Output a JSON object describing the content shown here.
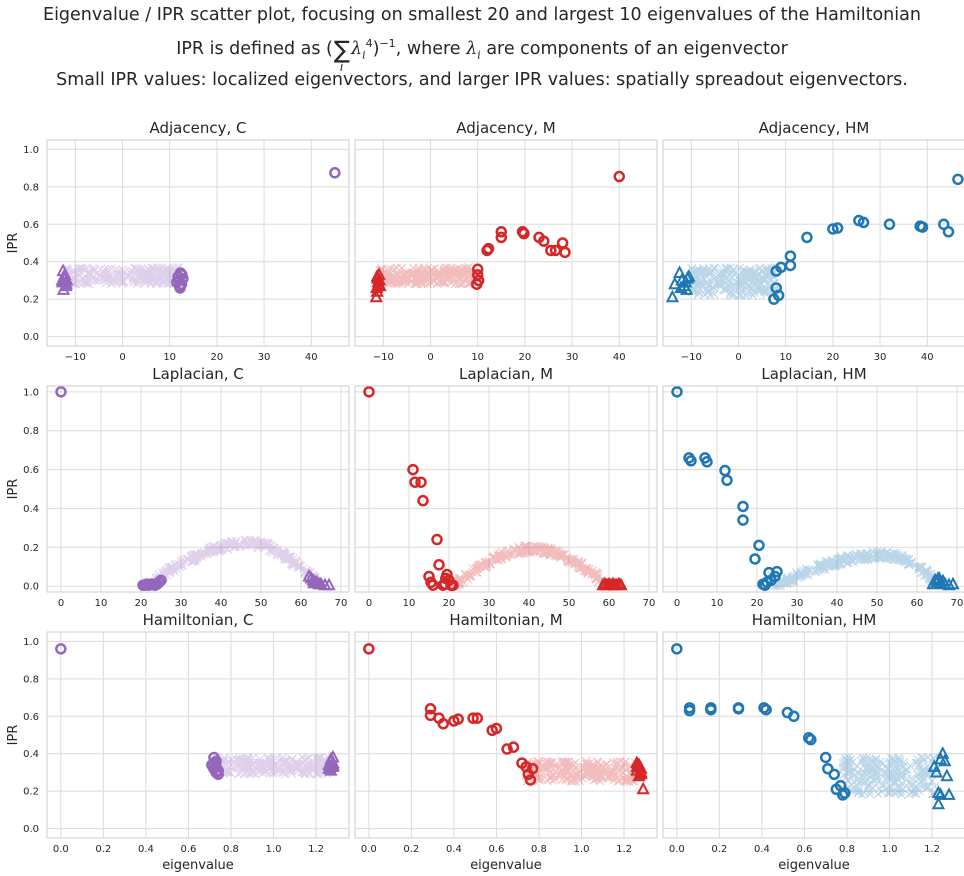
{
  "titles": {
    "line1": "Eigenvalue / IPR scatter plot, focusing on smallest 20 and largest 10 eigenvalues of the Hamiltonian",
    "line2_prefix": "IPR is defined as (",
    "line2_lambda": "λ",
    "line2_sub": "i",
    "line2_pow": "4",
    "line2_neg": "−1",
    "line2_mid": ", where ",
    "line2_suffix": " are components of an eigenvector",
    "line3": "Small IPR values: localized eigenvectors, and larger IPR values: spatially spreadout eigenvectors."
  },
  "colors": {
    "C": "#9467bd",
    "M": "#d62728",
    "HM": "#1f77b4",
    "grid": "#dcdcdc",
    "text": "#262626"
  },
  "legend_markers": {
    "middle": "x-marker",
    "smallest": "circle-marker",
    "largest": "triangle-marker"
  },
  "chart_data": [
    {
      "type": "scatter",
      "title": "Adjacency, C",
      "ylabel": "IPR",
      "xlim": [
        -16,
        48
      ],
      "ylim": [
        -0.05,
        1.05
      ],
      "xticks": [
        -10,
        0,
        10,
        20,
        30,
        40
      ],
      "yticks": [
        0.0,
        0.2,
        0.4,
        0.6,
        0.8,
        1.0
      ],
      "color": "C",
      "middle_band": {
        "x": [
          -12,
          12
        ],
        "y": [
          0.28,
          0.37
        ]
      },
      "smallest": [
        [
          45,
          0.875
        ],
        [
          12.3,
          0.34
        ],
        [
          12.0,
          0.3
        ],
        [
          12.5,
          0.28
        ],
        [
          11.8,
          0.32
        ],
        [
          12.2,
          0.26
        ],
        [
          12.6,
          0.33
        ],
        [
          11.5,
          0.29
        ],
        [
          12.8,
          0.31
        ],
        [
          12.1,
          0.27
        ]
      ],
      "largest": [
        [
          -12.5,
          0.25
        ],
        [
          -12.2,
          0.33
        ],
        [
          -12.8,
          0.3
        ],
        [
          -11.9,
          0.28
        ],
        [
          -12.6,
          0.35
        ],
        [
          -12.3,
          0.31
        ],
        [
          -12.0,
          0.27
        ],
        [
          -12.7,
          0.29
        ],
        [
          -12.4,
          0.32
        ],
        [
          -11.8,
          0.3
        ]
      ]
    },
    {
      "type": "scatter",
      "title": "Adjacency, M",
      "xlim": [
        -16,
        48
      ],
      "ylim": [
        -0.05,
        1.05
      ],
      "xticks": [
        -10,
        0,
        10,
        20,
        30,
        40
      ],
      "yticks": [
        0.0,
        0.2,
        0.4,
        0.6,
        0.8,
        1.0
      ],
      "color": "M",
      "middle_band": {
        "x": [
          -11,
          9.5
        ],
        "y": [
          0.28,
          0.37
        ]
      },
      "smallest": [
        [
          40,
          0.855
        ],
        [
          15,
          0.56
        ],
        [
          15,
          0.53
        ],
        [
          19.5,
          0.56
        ],
        [
          19.8,
          0.55
        ],
        [
          23,
          0.53
        ],
        [
          24,
          0.51
        ],
        [
          25.5,
          0.46
        ],
        [
          26.5,
          0.46
        ],
        [
          28,
          0.5
        ],
        [
          28.5,
          0.45
        ],
        [
          12,
          0.46
        ],
        [
          12.3,
          0.47
        ],
        [
          10,
          0.36
        ],
        [
          10,
          0.33
        ],
        [
          9.8,
          0.28
        ],
        [
          10.2,
          0.3
        ]
      ],
      "largest": [
        [
          -11.5,
          0.21
        ],
        [
          -11.3,
          0.24
        ],
        [
          -11.0,
          0.28
        ],
        [
          -11.2,
          0.31
        ],
        [
          -10.8,
          0.3
        ],
        [
          -11.4,
          0.26
        ],
        [
          -10.9,
          0.33
        ],
        [
          -11.1,
          0.29
        ],
        [
          -10.7,
          0.27
        ],
        [
          -11.3,
          0.32
        ]
      ]
    },
    {
      "type": "scatter",
      "title": "Adjacency, HM",
      "xlim": [
        -16,
        48
      ],
      "ylim": [
        -0.05,
        1.05
      ],
      "xticks": [
        -10,
        0,
        10,
        20,
        30,
        40
      ],
      "yticks": [
        0.0,
        0.2,
        0.4,
        0.6,
        0.8,
        1.0
      ],
      "color": "HM",
      "middle_band": {
        "x": [
          -10,
          8
        ],
        "y": [
          0.22,
          0.37
        ]
      },
      "smallest": [
        [
          46.5,
          0.84
        ],
        [
          25.5,
          0.62
        ],
        [
          26.5,
          0.61
        ],
        [
          32,
          0.6
        ],
        [
          38.5,
          0.59
        ],
        [
          39,
          0.585
        ],
        [
          43.5,
          0.6
        ],
        [
          44.5,
          0.56
        ],
        [
          20,
          0.575
        ],
        [
          21,
          0.58
        ],
        [
          14.5,
          0.53
        ],
        [
          11,
          0.43
        ],
        [
          11,
          0.38
        ],
        [
          9,
          0.37
        ],
        [
          8,
          0.35
        ],
        [
          8,
          0.26
        ],
        [
          8.5,
          0.22
        ],
        [
          7.5,
          0.2
        ]
      ],
      "largest": [
        [
          -14,
          0.21
        ],
        [
          -13.5,
          0.28
        ],
        [
          -12.5,
          0.34
        ],
        [
          -12,
          0.3
        ],
        [
          -11.5,
          0.27
        ],
        [
          -11,
          0.25
        ],
        [
          -10.8,
          0.31
        ],
        [
          -12.2,
          0.26
        ],
        [
          -11.2,
          0.29
        ],
        [
          -10.5,
          0.32
        ]
      ]
    },
    {
      "type": "scatter",
      "title": "Laplacian, C",
      "ylabel": "IPR",
      "xlim": [
        -3.5,
        72
      ],
      "ylim": [
        -0.03,
        1.03
      ],
      "xticks": [
        0,
        10,
        20,
        30,
        40,
        50,
        60,
        70
      ],
      "yticks": [
        0.0,
        0.2,
        0.4,
        0.6,
        0.8,
        1.0
      ],
      "color": "C",
      "middle_curve": {
        "x_start": 21,
        "x_peak": 47,
        "x_end": 64,
        "y_start": 0.0,
        "y_peak": 0.22,
        "y_end": 0.02
      },
      "smallest": [
        [
          0,
          1.0
        ],
        [
          20.5,
          0.005
        ],
        [
          21,
          0.005
        ],
        [
          21.5,
          0.01
        ],
        [
          22,
          0.005
        ],
        [
          22.5,
          0.01
        ],
        [
          23,
          0.01
        ],
        [
          23.5,
          0.005
        ],
        [
          24,
          0.01
        ],
        [
          24.5,
          0.02
        ],
        [
          25,
          0.03
        ]
      ],
      "largest": [
        [
          62,
          0.05
        ],
        [
          62.5,
          0.04
        ],
        [
          63,
          0.03
        ],
        [
          63.5,
          0.02
        ],
        [
          64,
          0.02
        ],
        [
          64.5,
          0.01
        ],
        [
          65,
          0.01
        ],
        [
          66,
          0.005
        ],
        [
          67,
          0.005
        ],
        [
          63.2,
          0.015
        ]
      ]
    },
    {
      "type": "scatter",
      "title": "Laplacian, M",
      "xlim": [
        -3.5,
        72
      ],
      "ylim": [
        -0.03,
        1.03
      ],
      "xticks": [
        0,
        10,
        20,
        30,
        40,
        50,
        60,
        70
      ],
      "yticks": [
        0.0,
        0.2,
        0.4,
        0.6,
        0.8,
        1.0
      ],
      "color": "M",
      "middle_curve": {
        "x_start": 21,
        "x_peak": 41,
        "x_end": 60,
        "y_start": 0.0,
        "y_peak": 0.19,
        "y_end": 0.0
      },
      "smallest": [
        [
          0,
          1.0
        ],
        [
          11,
          0.6
        ],
        [
          11.5,
          0.535
        ],
        [
          13,
          0.535
        ],
        [
          13.5,
          0.44
        ],
        [
          15,
          0.05
        ],
        [
          15.5,
          0.02
        ],
        [
          16,
          0.005
        ],
        [
          17,
          0.24
        ],
        [
          17.5,
          0.11
        ],
        [
          18.5,
          0.005
        ],
        [
          19,
          0.01
        ],
        [
          19.5,
          0.06
        ],
        [
          20,
          0.03
        ],
        [
          20.5,
          0.005
        ],
        [
          21,
          0.005
        ],
        [
          19.2,
          0.04
        ]
      ],
      "largest": [
        [
          58.5,
          0.005
        ],
        [
          59,
          0.01
        ],
        [
          59.5,
          0.005
        ],
        [
          60,
          0.01
        ],
        [
          60.5,
          0.005
        ],
        [
          61,
          0.01
        ],
        [
          61.5,
          0.005
        ],
        [
          62,
          0.005
        ],
        [
          62.5,
          0.01
        ],
        [
          63,
          0.005
        ]
      ]
    },
    {
      "type": "scatter",
      "title": "Laplacian, HM",
      "xlim": [
        -3.5,
        72
      ],
      "ylim": [
        -0.03,
        1.03
      ],
      "xticks": [
        0,
        10,
        20,
        30,
        40,
        50,
        60,
        70
      ],
      "yticks": [
        0.0,
        0.2,
        0.4,
        0.6,
        0.8,
        1.0
      ],
      "color": "HM",
      "middle_curve": {
        "x_start": 24,
        "x_peak": 52,
        "x_end": 65,
        "y_start": 0.0,
        "y_peak": 0.16,
        "y_end": 0.02
      },
      "smallest": [
        [
          0,
          1.0
        ],
        [
          3,
          0.66
        ],
        [
          3.5,
          0.645
        ],
        [
          7,
          0.66
        ],
        [
          7.5,
          0.64
        ],
        [
          12,
          0.595
        ],
        [
          12.5,
          0.545
        ],
        [
          16.5,
          0.41
        ],
        [
          16.5,
          0.34
        ],
        [
          19.5,
          0.14
        ],
        [
          20.5,
          0.21
        ],
        [
          21.5,
          0.01
        ],
        [
          22.5,
          0.02
        ],
        [
          23,
          0.07
        ],
        [
          23.5,
          0.03
        ],
        [
          24.5,
          0.05
        ],
        [
          25,
          0.075
        ],
        [
          22,
          0.005
        ]
      ],
      "largest": [
        [
          64,
          0.01
        ],
        [
          64.5,
          0.03
        ],
        [
          65,
          0.02
        ],
        [
          65.5,
          0.04
        ],
        [
          66,
          0.015
        ],
        [
          66.5,
          0.025
        ],
        [
          67,
          0.01
        ],
        [
          68,
          0.005
        ],
        [
          69,
          0.01
        ],
        [
          65.2,
          0.035
        ]
      ]
    },
    {
      "type": "scatter",
      "title": "Hamiltonian, C",
      "ylabel": "IPR",
      "xlabel": "eigenvalue",
      "xlim": [
        -0.065,
        1.355
      ],
      "ylim": [
        -0.05,
        1.05
      ],
      "xticks": [
        0.0,
        0.2,
        0.4,
        0.6,
        0.8,
        1.0,
        1.2
      ],
      "yticks": [
        0.0,
        0.2,
        0.4,
        0.6,
        0.8,
        1.0
      ],
      "color": "C",
      "middle_band": {
        "x": [
          0.73,
          1.27
        ],
        "y": [
          0.29,
          0.38
        ]
      },
      "smallest": [
        [
          0.0,
          0.96
        ],
        [
          0.72,
          0.38
        ],
        [
          0.72,
          0.35
        ],
        [
          0.73,
          0.33
        ],
        [
          0.73,
          0.3
        ],
        [
          0.74,
          0.29
        ],
        [
          0.71,
          0.34
        ],
        [
          0.72,
          0.32
        ],
        [
          0.74,
          0.31
        ],
        [
          0.73,
          0.36
        ]
      ],
      "largest": [
        [
          1.27,
          0.37
        ],
        [
          1.28,
          0.35
        ],
        [
          1.27,
          0.33
        ],
        [
          1.28,
          0.34
        ],
        [
          1.26,
          0.32
        ],
        [
          1.27,
          0.36
        ],
        [
          1.28,
          0.38
        ],
        [
          1.26,
          0.34
        ],
        [
          1.27,
          0.31
        ],
        [
          1.28,
          0.33
        ]
      ]
    },
    {
      "type": "scatter",
      "title": "Hamiltonian, M",
      "xlabel": "eigenvalue",
      "xlim": [
        -0.065,
        1.355
      ],
      "ylim": [
        -0.05,
        1.05
      ],
      "xticks": [
        0.0,
        0.2,
        0.4,
        0.6,
        0.8,
        1.0,
        1.2
      ],
      "yticks": [
        0.0,
        0.2,
        0.4,
        0.6,
        0.8,
        1.0
      ],
      "color": "M",
      "middle_band": {
        "x": [
          0.74,
          1.26
        ],
        "y": [
          0.25,
          0.36
        ]
      },
      "smallest": [
        [
          0.0,
          0.96
        ],
        [
          0.29,
          0.64
        ],
        [
          0.29,
          0.605
        ],
        [
          0.33,
          0.59
        ],
        [
          0.35,
          0.56
        ],
        [
          0.4,
          0.575
        ],
        [
          0.42,
          0.585
        ],
        [
          0.49,
          0.59
        ],
        [
          0.51,
          0.59
        ],
        [
          0.58,
          0.525
        ],
        [
          0.6,
          0.535
        ],
        [
          0.65,
          0.425
        ],
        [
          0.68,
          0.435
        ],
        [
          0.72,
          0.35
        ],
        [
          0.74,
          0.33
        ],
        [
          0.75,
          0.29
        ],
        [
          0.76,
          0.26
        ],
        [
          0.77,
          0.32
        ]
      ],
      "largest": [
        [
          1.26,
          0.35
        ],
        [
          1.27,
          0.34
        ],
        [
          1.28,
          0.32
        ],
        [
          1.28,
          0.3
        ],
        [
          1.27,
          0.28
        ],
        [
          1.26,
          0.31
        ],
        [
          1.29,
          0.21
        ],
        [
          1.27,
          0.33
        ],
        [
          1.28,
          0.29
        ],
        [
          1.26,
          0.33
        ]
      ]
    },
    {
      "type": "scatter",
      "title": "Hamiltonian, HM",
      "xlabel": "eigenvalue",
      "xlim": [
        -0.065,
        1.355
      ],
      "ylim": [
        -0.05,
        1.05
      ],
      "xticks": [
        0.0,
        0.2,
        0.4,
        0.6,
        0.8,
        1.0,
        1.2
      ],
      "yticks": [
        0.0,
        0.2,
        0.4,
        0.6,
        0.8,
        1.0
      ],
      "color": "HM",
      "middle_band": {
        "x": [
          0.78,
          1.22
        ],
        "y": [
          0.18,
          0.38
        ]
      },
      "smallest": [
        [
          0.0,
          0.96
        ],
        [
          0.06,
          0.645
        ],
        [
          0.06,
          0.63
        ],
        [
          0.16,
          0.645
        ],
        [
          0.16,
          0.635
        ],
        [
          0.29,
          0.645
        ],
        [
          0.29,
          0.64
        ],
        [
          0.41,
          0.645
        ],
        [
          0.42,
          0.635
        ],
        [
          0.52,
          0.62
        ],
        [
          0.55,
          0.6
        ],
        [
          0.62,
          0.485
        ],
        [
          0.63,
          0.475
        ],
        [
          0.7,
          0.38
        ],
        [
          0.71,
          0.32
        ],
        [
          0.74,
          0.29
        ],
        [
          0.75,
          0.21
        ],
        [
          0.77,
          0.23
        ],
        [
          0.79,
          0.19
        ],
        [
          0.78,
          0.18
        ]
      ],
      "largest": [
        [
          1.21,
          0.33
        ],
        [
          1.22,
          0.3
        ],
        [
          1.23,
          0.19
        ],
        [
          1.23,
          0.13
        ],
        [
          1.24,
          0.18
        ],
        [
          1.25,
          0.4
        ],
        [
          1.26,
          0.36
        ],
        [
          1.27,
          0.28
        ],
        [
          1.28,
          0.18
        ],
        [
          1.24,
          0.37
        ]
      ]
    }
  ]
}
